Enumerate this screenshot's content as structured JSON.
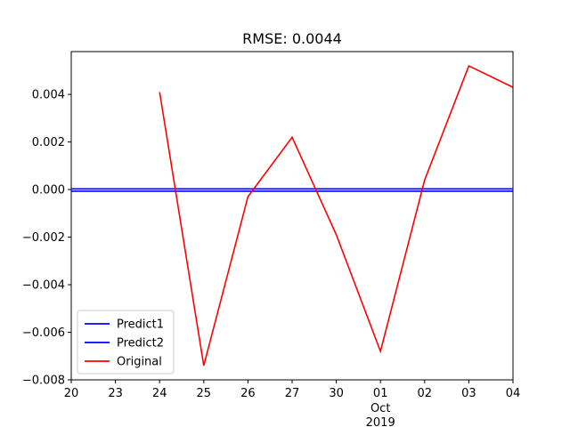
{
  "chart_data": {
    "type": "line",
    "title": "RMSE: 0.0044",
    "xlabel": "",
    "ylabel": "",
    "x_tick_labels": [
      {
        "x": 0,
        "label": "20"
      },
      {
        "x": 1,
        "label": "23"
      },
      {
        "x": 2,
        "label": "24"
      },
      {
        "x": 3,
        "label": "25"
      },
      {
        "x": 4,
        "label": "26"
      },
      {
        "x": 5,
        "label": "27"
      },
      {
        "x": 6,
        "label": "30"
      },
      {
        "x": 7,
        "label": "01"
      },
      {
        "x": 8,
        "label": "02"
      },
      {
        "x": 9,
        "label": "03"
      },
      {
        "x": 10,
        "label": "04"
      }
    ],
    "x_sublabel": {
      "x": 7,
      "month": "Oct",
      "year": "2019"
    },
    "xlim": [
      0,
      10
    ],
    "ylim": [
      -0.008,
      0.0058
    ],
    "y_ticks": [
      -0.008,
      -0.006,
      -0.004,
      -0.002,
      0.0,
      0.002,
      0.004
    ],
    "y_tick_labels": [
      "−0.008",
      "−0.006",
      "−0.004",
      "−0.002",
      "0.000",
      "0.002",
      "0.004"
    ],
    "grid": false,
    "legend_position": "lower-left",
    "series": [
      {
        "name": "Predict1",
        "color": "#0000ff",
        "x": [
          0,
          10
        ],
        "y": [
          3e-05,
          3e-05
        ]
      },
      {
        "name": "Predict2",
        "color": "#0000ff",
        "x": [
          0,
          10
        ],
        "y": [
          -7e-05,
          -7e-05
        ]
      },
      {
        "name": "Original",
        "color": "#ff0000",
        "x": [
          2,
          3,
          4,
          5,
          6,
          7,
          8,
          9,
          10
        ],
        "y": [
          0.0041,
          -0.0074,
          -0.0003,
          0.0022,
          -0.0019,
          -0.0068,
          0.0004,
          0.0052,
          0.0043
        ]
      }
    ]
  }
}
